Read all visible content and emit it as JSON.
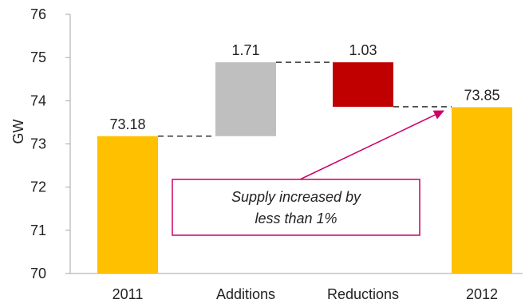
{
  "chart_data": {
    "type": "bar",
    "subtype": "waterfall",
    "title": "",
    "xlabel": "",
    "ylabel": "GW",
    "ylim": [
      70,
      76
    ],
    "yticks": [
      70,
      71,
      72,
      73,
      74,
      75,
      76
    ],
    "grid": false,
    "legend": "none",
    "categories": [
      "2011",
      "Additions",
      "Reductions",
      "2012"
    ],
    "bars": [
      {
        "category": "2011",
        "base": 70,
        "top": 73.18,
        "label": "73.18",
        "kind": "total",
        "color": "#FFC000"
      },
      {
        "category": "Additions",
        "base": 73.18,
        "top": 74.89,
        "label": "1.71",
        "kind": "increase",
        "color": "#BFBFBF"
      },
      {
        "category": "Reductions",
        "base": 73.86,
        "top": 74.89,
        "label": "1.03",
        "kind": "decrease",
        "color": "#C00000"
      },
      {
        "category": "2012",
        "base": 70,
        "top": 73.85,
        "label": "73.85",
        "kind": "total",
        "color": "#FFC000"
      }
    ],
    "connectors": [
      {
        "from": 0,
        "to": 1,
        "value": 73.18
      },
      {
        "from": 1,
        "to": 2,
        "value": 74.89
      },
      {
        "from": 2,
        "to": 3,
        "value": 73.86
      }
    ],
    "annotation": {
      "lines": [
        "Supply increased by",
        "less than 1%"
      ],
      "color": "#CC0066",
      "arrow_target_category": "2012",
      "arrow_target_value": 73.85
    }
  }
}
